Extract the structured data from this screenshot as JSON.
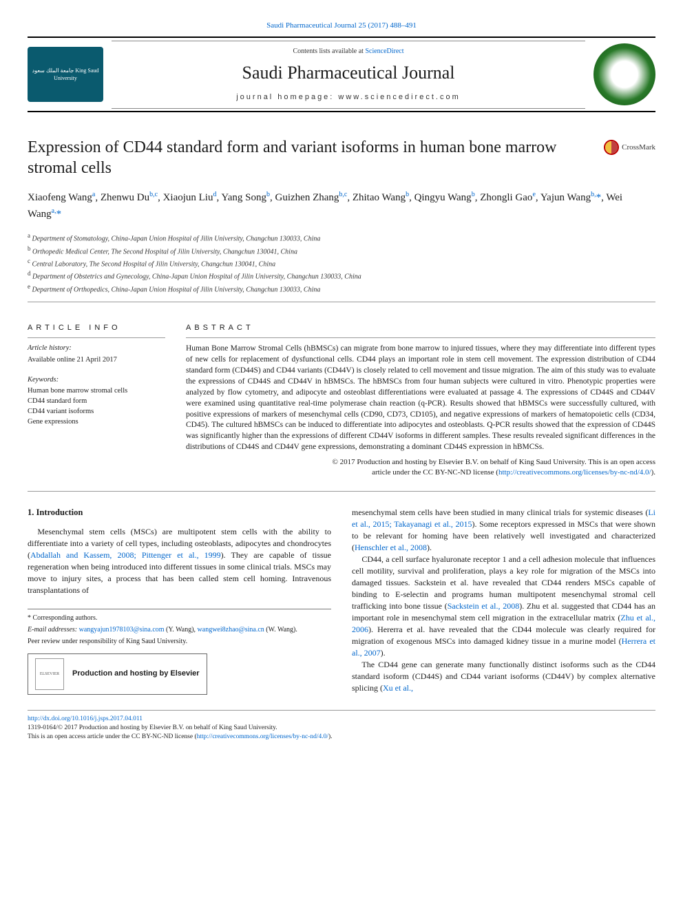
{
  "top_journal_link": "Saudi Pharmaceutical Journal 25 (2017) 488–491",
  "header": {
    "contents_line_prefix": "Contents lists available at ",
    "contents_link": "ScienceDirect",
    "journal_name": "Saudi Pharmaceutical Journal",
    "homepage_prefix": "journal homepage: ",
    "homepage_url": "www.sciencedirect.com",
    "logo_left_text": "جامعة\nالملك سعود\nKing Saud University"
  },
  "crossmark_label": "CrossMark",
  "title": "Expression of CD44 standard form and variant isoforms in human bone marrow stromal cells",
  "authors_html": "Xiaofeng Wang<sup>a</sup>, Zhenwu Du<sup>b,c</sup>, Xiaojun Liu<sup>d</sup>, Yang Song<sup>b</sup>, Guizhen Zhang<sup>b,c</sup>, Zhitao Wang<sup>b</sup>, Qingyu Wang<sup>b</sup>, Zhongli Gao<sup>e</sup>, Yajun Wang<sup>b,</sup><span class='star'>*</span>, Wei Wang<sup>a,</sup><span class='star'>*</span>",
  "affiliations": [
    {
      "sup": "a",
      "text": "Department of Stomatology, China-Japan Union Hospital of Jilin University, Changchun 130033, China"
    },
    {
      "sup": "b",
      "text": "Orthopedic Medical Center, The Second Hospital of Jilin University, Changchun 130041, China"
    },
    {
      "sup": "c",
      "text": "Central Laboratory, The Second Hospital of Jilin University, Changchun 130041, China"
    },
    {
      "sup": "d",
      "text": "Department of Obstetrics and Gynecology, China-Japan Union Hospital of Jilin University, Changchun 130033, China"
    },
    {
      "sup": "e",
      "text": "Department of Orthopedics, China-Japan Union Hospital of Jilin University, Changchun 130033, China"
    }
  ],
  "article_info": {
    "label": "ARTICLE INFO",
    "history_label": "Article history:",
    "history_value": "Available online 21 April 2017",
    "keywords_label": "Keywords:",
    "keywords": [
      "Human bone marrow stromal cells",
      "CD44 standard form",
      "CD44 variant isoforms",
      "Gene expressions"
    ]
  },
  "abstract": {
    "label": "ABSTRACT",
    "text": "Human Bone Marrow Stromal Cells (hBMSCs) can migrate from bone marrow to injured tissues, where they may differentiate into different types of new cells for replacement of dysfunctional cells. CD44 plays an important role in stem cell movement. The expression distribution of CD44 standard form (CD44S) and CD44 variants (CD44V) is closely related to cell movement and tissue migration. The aim of this study was to evaluate the expressions of CD44S and CD44V in hBMSCs. The hBMSCs from four human subjects were cultured in vitro. Phenotypic properties were analyzed by flow cytometry, and adipocyte and osteoblast differentiations were evaluated at passage 4. The expressions of CD44S and CD44V were examined using quantitative real-time polymerase chain reaction (q-PCR). Results showed that hBMSCs were successfully cultured, with positive expressions of markers of mesenchymal cells (CD90, CD73, CD105), and negative expressions of markers of hematopoietic cells (CD34, CD45). The cultured hBMSCs can be induced to differentiate into adipocytes and osteoblasts. Q-PCR results showed that the expression of CD44S was significantly higher than the expressions of different CD44V isoforms in different samples. These results revealed significant differences in the distributions of CD44S and CD44V gene expressions, demonstrating a dominant CD44S expression in hBMCSs.",
    "copyright_line1": "© 2017 Production and hosting by Elsevier B.V. on behalf of King Saud University. This is an open access",
    "copyright_line2_prefix": "article under the CC BY-NC-ND license (",
    "copyright_link": "http://creativecommons.org/licenses/by-nc-nd/4.0/",
    "copyright_line2_suffix": ")."
  },
  "body": {
    "section1_heading": "1. Introduction",
    "p1_pre": "Mesenchymal stem cells (MSCs) are multipotent stem cells with the ability to differentiate into a variety of cell types, including osteoblasts, adipocytes and chondrocytes (",
    "p1_link": "Abdallah and Kassem, 2008; Pittenger et al., 1999",
    "p1_post": "). They are capable of tissue regeneration when being introduced into different tissues in some clinical trials. MSCs may move to injury sites, a process that has been called stem cell homing. Intravenous transplantations of",
    "p2_pre": "mesenchymal stem cells have been studied in many clinical trials for systemic diseases (",
    "p2_link": "Li et al., 2015; Takayanagi et al., 2015",
    "p2_mid": "). Some receptors expressed in MSCs that were shown to be relevant for homing have been relatively well investigated and characterized (",
    "p2_link2": "Henschler et al., 2008",
    "p2_post": ").",
    "p3_pre": "CD44, a cell surface hyaluronate receptor 1 and a cell adhesion molecule that influences cell motility, survival and proliferation, plays a key role for migration of the MSCs into damaged tissues. Sackstein et al. have revealed that CD44 renders MSCs capable of binding to E-selectin and programs human multipotent mesenchymal stromal cell trafficking into bone tissue (",
    "p3_link1": "Sackstein et al., 2008",
    "p3_mid1": "). Zhu et al. suggested that CD44 has an important role in mesenchymal stem cell migration in the extracellular matrix (",
    "p3_link2": "Zhu et al., 2006",
    "p3_mid2": "). Hererra et al. have revealed that the CD44 molecule was clearly required for migration of exogenous MSCs into damaged kidney tissue in a murine model (",
    "p3_link3": "Herrera et al., 2007",
    "p3_post": ").",
    "p4_pre": "The CD44 gene can generate many functionally distinct isoforms such as the CD44 standard isoform (CD44S) and CD44 variant isoforms (CD44V) by complex alternative splicing (",
    "p4_link": "Xu et al.,"
  },
  "footnotes": {
    "corresponding": "* Corresponding authors.",
    "email_label": "E-mail addresses: ",
    "email1": "wangyajun1978103@sina.com",
    "email1_who": " (Y. Wang), ",
    "email2": "wangwei8zhao@sina.cn",
    "email2_who": " (W. Wang).",
    "peer_review": "Peer review under responsibility of King Saud University.",
    "elsevier_logo_text": "ELSEVIER",
    "elsevier_text": "Production and hosting by Elsevier"
  },
  "footer": {
    "doi": "http://dx.doi.org/10.1016/j.jsps.2017.04.011",
    "line2": "1319-0164/© 2017 Production and hosting by Elsevier B.V. on behalf of King Saud University.",
    "line3_pre": "This is an open access article under the CC BY-NC-ND license (",
    "line3_link": "http://creativecommons.org/licenses/by-nc-nd/4.0/",
    "line3_post": ")."
  },
  "colors": {
    "link": "#0066cc",
    "ksu_logo_bg": "#0a5a6e",
    "journal_logo_green": "#2a7a2a"
  }
}
